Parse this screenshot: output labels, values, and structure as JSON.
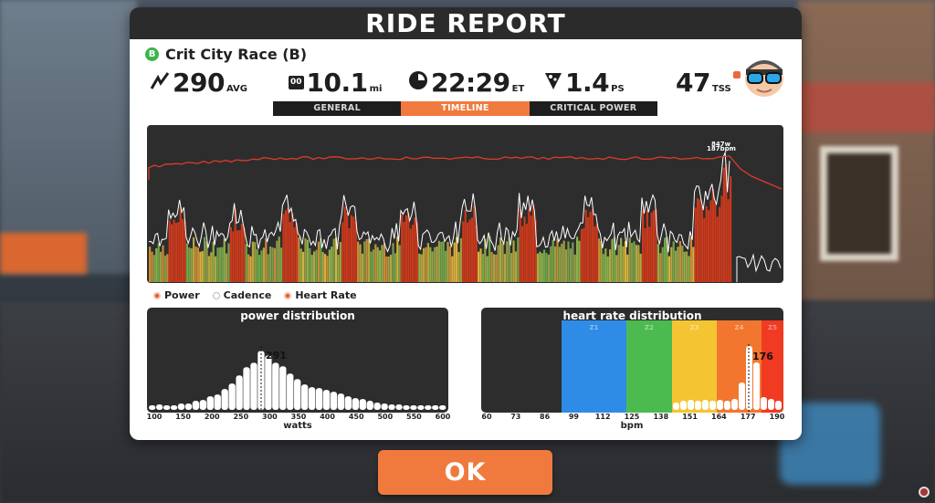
{
  "panel": {
    "title": "RIDE REPORT",
    "category": "B",
    "race_name": "Crit City Race (B)"
  },
  "stats": {
    "power": {
      "value": "290",
      "unit": "AVG",
      "icon": "power-icon"
    },
    "distance": {
      "odometer": "00",
      "value": "10.1",
      "unit": "mi",
      "icon": "odometer-icon"
    },
    "time": {
      "value": "22:29",
      "unit": "ET",
      "icon": "clock-icon"
    },
    "pizza": {
      "value": "1.4",
      "unit": "PS",
      "icon": "pizza-icon"
    },
    "tss": {
      "value": "47",
      "unit": "TSS"
    }
  },
  "tabs": [
    {
      "label": "GENERAL",
      "active": false
    },
    {
      "label": "TIMELINE",
      "active": true
    },
    {
      "label": "CRITICAL POWER",
      "active": false
    }
  ],
  "timeline": {
    "peak_label_power": "847w",
    "peak_label_hr": "187bpm",
    "colors": {
      "power_bar": "#c9391c",
      "heart_rate": "#e03a2a",
      "cadence": "#ffffff"
    }
  },
  "legend": [
    {
      "label": "Power",
      "on": true
    },
    {
      "label": "Cadence",
      "on": false
    },
    {
      "label": "Heart Rate",
      "on": true
    }
  ],
  "power_distribution": {
    "title": "power distribution",
    "marker_label": "291",
    "x_ticks": [
      "100",
      "150",
      "200",
      "250",
      "300",
      "350",
      "400",
      "450",
      "500",
      "550",
      "600"
    ],
    "x_title": "watts",
    "values": [
      0.05,
      0.06,
      0.05,
      0.05,
      0.07,
      0.07,
      0.1,
      0.11,
      0.15,
      0.17,
      0.23,
      0.29,
      0.38,
      0.47,
      0.52,
      0.65,
      0.6,
      0.52,
      0.48,
      0.4,
      0.34,
      0.28,
      0.25,
      0.24,
      0.22,
      0.2,
      0.18,
      0.15,
      0.13,
      0.12,
      0.1,
      0.08,
      0.07,
      0.06,
      0.06,
      0.05,
      0.05,
      0.05,
      0.05,
      0.05,
      0.05
    ]
  },
  "hr_distribution": {
    "title": "heart rate distribution",
    "marker_label": "176",
    "zones": [
      {
        "label": "Z1",
        "color": "#2f8ce6"
      },
      {
        "label": "Z2",
        "color": "#4cbb4f"
      },
      {
        "label": "Z3",
        "color": "#f5c433"
      },
      {
        "label": "Z4",
        "color": "#f2762e"
      },
      {
        "label": "Z5",
        "color": "#f03a21"
      }
    ],
    "x_ticks": [
      "60",
      "73",
      "86",
      "99",
      "112",
      "125",
      "138",
      "151",
      "164",
      "177",
      "190"
    ],
    "x_title": "bpm"
  },
  "ok_button": {
    "label": "OK"
  }
}
